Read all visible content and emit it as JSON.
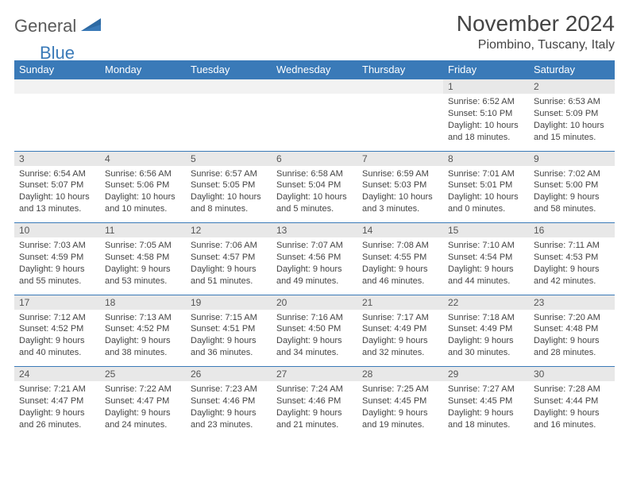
{
  "logo": {
    "part1": "General",
    "part2": "Blue"
  },
  "title": "November 2024",
  "location": "Piombino, Tuscany, Italy",
  "colors": {
    "header_bg": "#3a7ab8",
    "header_text": "#ffffff",
    "daynum_bg": "#e8e8e8",
    "border": "#3a7ab8",
    "text": "#444444",
    "logo_gray": "#5a5a5a",
    "logo_blue": "#3a7ab8"
  },
  "day_headers": [
    "Sunday",
    "Monday",
    "Tuesday",
    "Wednesday",
    "Thursday",
    "Friday",
    "Saturday"
  ],
  "weeks": [
    [
      {
        "num": "",
        "lines": []
      },
      {
        "num": "",
        "lines": []
      },
      {
        "num": "",
        "lines": []
      },
      {
        "num": "",
        "lines": []
      },
      {
        "num": "",
        "lines": []
      },
      {
        "num": "1",
        "lines": [
          "Sunrise: 6:52 AM",
          "Sunset: 5:10 PM",
          "Daylight: 10 hours",
          "and 18 minutes."
        ]
      },
      {
        "num": "2",
        "lines": [
          "Sunrise: 6:53 AM",
          "Sunset: 5:09 PM",
          "Daylight: 10 hours",
          "and 15 minutes."
        ]
      }
    ],
    [
      {
        "num": "3",
        "lines": [
          "Sunrise: 6:54 AM",
          "Sunset: 5:07 PM",
          "Daylight: 10 hours",
          "and 13 minutes."
        ]
      },
      {
        "num": "4",
        "lines": [
          "Sunrise: 6:56 AM",
          "Sunset: 5:06 PM",
          "Daylight: 10 hours",
          "and 10 minutes."
        ]
      },
      {
        "num": "5",
        "lines": [
          "Sunrise: 6:57 AM",
          "Sunset: 5:05 PM",
          "Daylight: 10 hours",
          "and 8 minutes."
        ]
      },
      {
        "num": "6",
        "lines": [
          "Sunrise: 6:58 AM",
          "Sunset: 5:04 PM",
          "Daylight: 10 hours",
          "and 5 minutes."
        ]
      },
      {
        "num": "7",
        "lines": [
          "Sunrise: 6:59 AM",
          "Sunset: 5:03 PM",
          "Daylight: 10 hours",
          "and 3 minutes."
        ]
      },
      {
        "num": "8",
        "lines": [
          "Sunrise: 7:01 AM",
          "Sunset: 5:01 PM",
          "Daylight: 10 hours",
          "and 0 minutes."
        ]
      },
      {
        "num": "9",
        "lines": [
          "Sunrise: 7:02 AM",
          "Sunset: 5:00 PM",
          "Daylight: 9 hours",
          "and 58 minutes."
        ]
      }
    ],
    [
      {
        "num": "10",
        "lines": [
          "Sunrise: 7:03 AM",
          "Sunset: 4:59 PM",
          "Daylight: 9 hours",
          "and 55 minutes."
        ]
      },
      {
        "num": "11",
        "lines": [
          "Sunrise: 7:05 AM",
          "Sunset: 4:58 PM",
          "Daylight: 9 hours",
          "and 53 minutes."
        ]
      },
      {
        "num": "12",
        "lines": [
          "Sunrise: 7:06 AM",
          "Sunset: 4:57 PM",
          "Daylight: 9 hours",
          "and 51 minutes."
        ]
      },
      {
        "num": "13",
        "lines": [
          "Sunrise: 7:07 AM",
          "Sunset: 4:56 PM",
          "Daylight: 9 hours",
          "and 49 minutes."
        ]
      },
      {
        "num": "14",
        "lines": [
          "Sunrise: 7:08 AM",
          "Sunset: 4:55 PM",
          "Daylight: 9 hours",
          "and 46 minutes."
        ]
      },
      {
        "num": "15",
        "lines": [
          "Sunrise: 7:10 AM",
          "Sunset: 4:54 PM",
          "Daylight: 9 hours",
          "and 44 minutes."
        ]
      },
      {
        "num": "16",
        "lines": [
          "Sunrise: 7:11 AM",
          "Sunset: 4:53 PM",
          "Daylight: 9 hours",
          "and 42 minutes."
        ]
      }
    ],
    [
      {
        "num": "17",
        "lines": [
          "Sunrise: 7:12 AM",
          "Sunset: 4:52 PM",
          "Daylight: 9 hours",
          "and 40 minutes."
        ]
      },
      {
        "num": "18",
        "lines": [
          "Sunrise: 7:13 AM",
          "Sunset: 4:52 PM",
          "Daylight: 9 hours",
          "and 38 minutes."
        ]
      },
      {
        "num": "19",
        "lines": [
          "Sunrise: 7:15 AM",
          "Sunset: 4:51 PM",
          "Daylight: 9 hours",
          "and 36 minutes."
        ]
      },
      {
        "num": "20",
        "lines": [
          "Sunrise: 7:16 AM",
          "Sunset: 4:50 PM",
          "Daylight: 9 hours",
          "and 34 minutes."
        ]
      },
      {
        "num": "21",
        "lines": [
          "Sunrise: 7:17 AM",
          "Sunset: 4:49 PM",
          "Daylight: 9 hours",
          "and 32 minutes."
        ]
      },
      {
        "num": "22",
        "lines": [
          "Sunrise: 7:18 AM",
          "Sunset: 4:49 PM",
          "Daylight: 9 hours",
          "and 30 minutes."
        ]
      },
      {
        "num": "23",
        "lines": [
          "Sunrise: 7:20 AM",
          "Sunset: 4:48 PM",
          "Daylight: 9 hours",
          "and 28 minutes."
        ]
      }
    ],
    [
      {
        "num": "24",
        "lines": [
          "Sunrise: 7:21 AM",
          "Sunset: 4:47 PM",
          "Daylight: 9 hours",
          "and 26 minutes."
        ]
      },
      {
        "num": "25",
        "lines": [
          "Sunrise: 7:22 AM",
          "Sunset: 4:47 PM",
          "Daylight: 9 hours",
          "and 24 minutes."
        ]
      },
      {
        "num": "26",
        "lines": [
          "Sunrise: 7:23 AM",
          "Sunset: 4:46 PM",
          "Daylight: 9 hours",
          "and 23 minutes."
        ]
      },
      {
        "num": "27",
        "lines": [
          "Sunrise: 7:24 AM",
          "Sunset: 4:46 PM",
          "Daylight: 9 hours",
          "and 21 minutes."
        ]
      },
      {
        "num": "28",
        "lines": [
          "Sunrise: 7:25 AM",
          "Sunset: 4:45 PM",
          "Daylight: 9 hours",
          "and 19 minutes."
        ]
      },
      {
        "num": "29",
        "lines": [
          "Sunrise: 7:27 AM",
          "Sunset: 4:45 PM",
          "Daylight: 9 hours",
          "and 18 minutes."
        ]
      },
      {
        "num": "30",
        "lines": [
          "Sunrise: 7:28 AM",
          "Sunset: 4:44 PM",
          "Daylight: 9 hours",
          "and 16 minutes."
        ]
      }
    ]
  ]
}
